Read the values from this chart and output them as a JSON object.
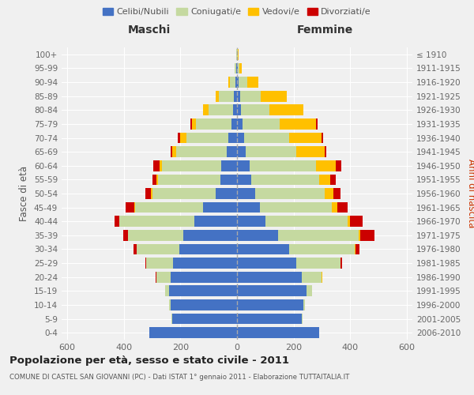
{
  "age_groups": [
    "0-4",
    "5-9",
    "10-14",
    "15-19",
    "20-24",
    "25-29",
    "30-34",
    "35-39",
    "40-44",
    "45-49",
    "50-54",
    "55-59",
    "60-64",
    "65-69",
    "70-74",
    "75-79",
    "80-84",
    "85-89",
    "90-94",
    "95-99",
    "100+"
  ],
  "birth_years": [
    "2006-2010",
    "2001-2005",
    "1996-2000",
    "1991-1995",
    "1986-1990",
    "1981-1985",
    "1976-1980",
    "1971-1975",
    "1966-1970",
    "1961-1965",
    "1956-1960",
    "1951-1955",
    "1946-1950",
    "1941-1945",
    "1936-1940",
    "1931-1935",
    "1926-1930",
    "1921-1925",
    "1916-1920",
    "1911-1915",
    "≤ 1910"
  ],
  "male_celibe": [
    310,
    230,
    235,
    240,
    235,
    225,
    205,
    190,
    150,
    120,
    75,
    60,
    55,
    35,
    30,
    20,
    15,
    10,
    5,
    3,
    1
  ],
  "male_coniugato": [
    1,
    2,
    5,
    15,
    50,
    95,
    150,
    195,
    265,
    240,
    225,
    220,
    210,
    180,
    150,
    125,
    85,
    55,
    20,
    5,
    1
  ],
  "male_vedovo": [
    0,
    0,
    0,
    0,
    0,
    0,
    0,
    1,
    2,
    3,
    5,
    5,
    10,
    15,
    20,
    15,
    20,
    10,
    5,
    0,
    0
  ],
  "male_divorziato": [
    0,
    0,
    0,
    0,
    2,
    5,
    10,
    15,
    15,
    30,
    20,
    15,
    20,
    5,
    10,
    5,
    0,
    0,
    0,
    0,
    0
  ],
  "female_nubile": [
    290,
    230,
    235,
    245,
    230,
    210,
    185,
    145,
    100,
    80,
    65,
    50,
    45,
    30,
    25,
    20,
    15,
    10,
    5,
    2,
    1
  ],
  "female_coniugata": [
    1,
    2,
    5,
    20,
    70,
    155,
    230,
    285,
    290,
    255,
    245,
    240,
    235,
    180,
    160,
    130,
    100,
    75,
    30,
    5,
    2
  ],
  "female_vedova": [
    0,
    0,
    0,
    0,
    1,
    2,
    3,
    5,
    10,
    20,
    30,
    40,
    70,
    100,
    115,
    130,
    120,
    90,
    40,
    10,
    2
  ],
  "female_divorziata": [
    0,
    0,
    0,
    0,
    2,
    5,
    15,
    50,
    45,
    35,
    25,
    20,
    20,
    5,
    5,
    5,
    0,
    0,
    0,
    0,
    0
  ],
  "colors_celibe": "#4472c4",
  "colors_coniugato": "#c5d9a0",
  "colors_vedovo": "#ffc000",
  "colors_divorziato": "#cc0000",
  "xlim": 620,
  "title": "Popolazione per età, sesso e stato civile - 2011",
  "subtitle": "COMUNE DI CASTEL SAN GIOVANNI (PC) - Dati ISTAT 1° gennaio 2011 - Elaborazione TUTTAITALIA.IT",
  "label_maschi": "Maschi",
  "label_femmine": "Femmine",
  "ylabel_left": "Fasce di età",
  "ylabel_right": "Anni di nascita",
  "legend_labels": [
    "Celibi/Nubili",
    "Coniugati/e",
    "Vedovi/e",
    "Divorziati/e"
  ],
  "bg_color": "#f0f0f0"
}
